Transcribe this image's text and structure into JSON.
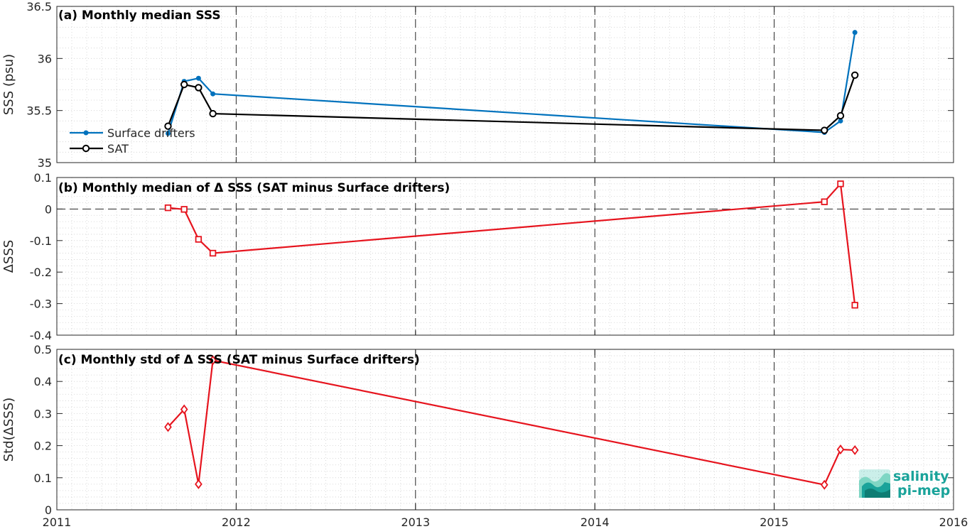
{
  "chart_data": [
    {
      "type": "line",
      "title": "(a) Monthly median SSS",
      "ylabel": "SSS (psu)",
      "ylim": [
        35,
        36.5
      ],
      "yticks": [
        "35",
        "35.5",
        "36",
        "36.5"
      ],
      "xlim": [
        2011,
        2016
      ],
      "xticks": [
        "2011",
        "2012",
        "2013",
        "2014",
        "2015",
        "2016"
      ],
      "grid": true,
      "legend": "left",
      "series": [
        {
          "name": "Surface drifters",
          "color": "#0072bd",
          "marker": "dot",
          "x": [
            2011.62,
            2011.71,
            2011.79,
            2011.87,
            2015.28,
            2015.37,
            2015.45
          ],
          "y": [
            35.28,
            35.78,
            35.81,
            35.66,
            35.29,
            35.4,
            36.25
          ]
        },
        {
          "name": "SAT",
          "color": "#000000",
          "marker": "circle",
          "x": [
            2011.62,
            2011.71,
            2011.79,
            2011.87,
            2015.28,
            2015.37,
            2015.45
          ],
          "y": [
            35.35,
            35.75,
            35.72,
            35.47,
            35.31,
            35.45,
            35.84
          ]
        }
      ]
    },
    {
      "type": "line",
      "title": "(b) Monthly median of Δ SSS (SAT minus Surface drifters)",
      "ylabel": "ΔSSS",
      "ylim": [
        -0.4,
        0.1
      ],
      "yticks": [
        "-0.4",
        "-0.3",
        "-0.2",
        "-0.1",
        "0",
        "0.1"
      ],
      "xlim": [
        2011,
        2016
      ],
      "grid": true,
      "series": [
        {
          "color": "#e6141e",
          "marker": "square",
          "x": [
            2011.62,
            2011.71,
            2011.79,
            2011.87,
            2015.28,
            2015.37,
            2015.45
          ],
          "y": [
            0.004,
            -0.001,
            -0.096,
            -0.14,
            0.023,
            0.08,
            -0.305
          ]
        }
      ]
    },
    {
      "type": "line",
      "title": "(c) Monthly std of Δ SSS (SAT minus Surface drifters)",
      "ylabel": "Std(ΔSSS)",
      "ylim": [
        0,
        0.5
      ],
      "yticks": [
        "0",
        "0.1",
        "0.2",
        "0.3",
        "0.4",
        "0.5"
      ],
      "xlim": [
        2011,
        2016
      ],
      "xticks": [
        "2011",
        "2012",
        "2013",
        "2014",
        "2015",
        "2016"
      ],
      "grid": true,
      "series": [
        {
          "color": "#e6141e",
          "marker": "diamond",
          "x": [
            2011.62,
            2011.71,
            2011.79,
            2011.87,
            2015.28,
            2015.37,
            2015.45
          ],
          "y": [
            0.258,
            0.313,
            0.08,
            0.466,
            0.078,
            0.188,
            0.186
          ]
        }
      ]
    }
  ],
  "logo": {
    "line1": "salinity",
    "line2": "pi-mep",
    "color": "#1aa39a"
  }
}
